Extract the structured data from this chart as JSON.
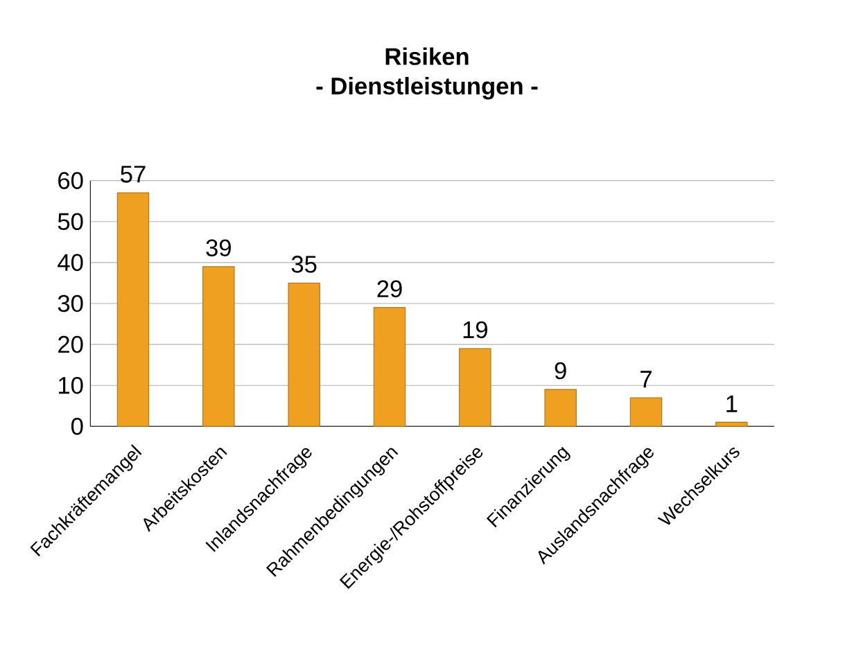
{
  "chart_data": {
    "type": "bar",
    "title": "Risiken",
    "subtitle": "- Dienstleistungen -",
    "categories": [
      "Fachkräftemangel",
      "Arbeitskosten",
      "Inlandsnachfrage",
      "Rahmenbedingungen",
      "Energie-/Rohstoffpreise",
      "Finanzierung",
      "Auslandsnachfrage",
      "Wechselkurs"
    ],
    "values": [
      57,
      39,
      35,
      29,
      19,
      9,
      7,
      1
    ],
    "color": "#f0a020",
    "ylim": [
      0,
      60
    ],
    "yticks": [
      0,
      10,
      20,
      30,
      40,
      50,
      60
    ],
    "grid": "y",
    "data_labels": true
  }
}
